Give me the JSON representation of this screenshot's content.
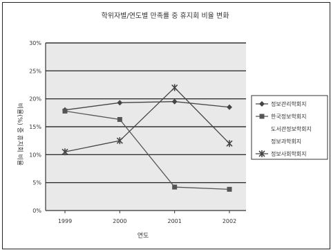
{
  "chart_data": {
    "type": "line",
    "title": "학위자별/연도별 만족률 중 휴지회 비율 변화",
    "xlabel": "연도",
    "ylabel": "비율(%) 중 휴지회 비율",
    "categories": [
      "1999",
      "2000",
      "2001",
      "2002"
    ],
    "ylim": [
      0,
      30
    ],
    "yticks": [
      "0%",
      "5%",
      "10%",
      "15%",
      "20%",
      "25%",
      "30%"
    ],
    "grid": true,
    "legend_position": "right",
    "series": [
      {
        "name": "정보관리학회지",
        "values": [
          18,
          19.3,
          19.5,
          18.5
        ],
        "marker": "diamond",
        "color": "#444444"
      },
      {
        "name": "한국정보학회지",
        "values": [
          17.8,
          16.3,
          4.2,
          3.8
        ],
        "marker": "square",
        "color": "#555555"
      },
      {
        "name": "도서관정보학회지",
        "values": [
          null,
          null,
          null,
          null
        ],
        "marker": "triangle",
        "color": "#ffffff"
      },
      {
        "name": "정보과학회지",
        "values": [
          null,
          null,
          null,
          null
        ],
        "marker": "none",
        "color": "#ffffff"
      },
      {
        "name": "정보사회학회지",
        "values": [
          10.5,
          12.5,
          22,
          12
        ],
        "marker": "star",
        "color": "#444444"
      }
    ]
  }
}
